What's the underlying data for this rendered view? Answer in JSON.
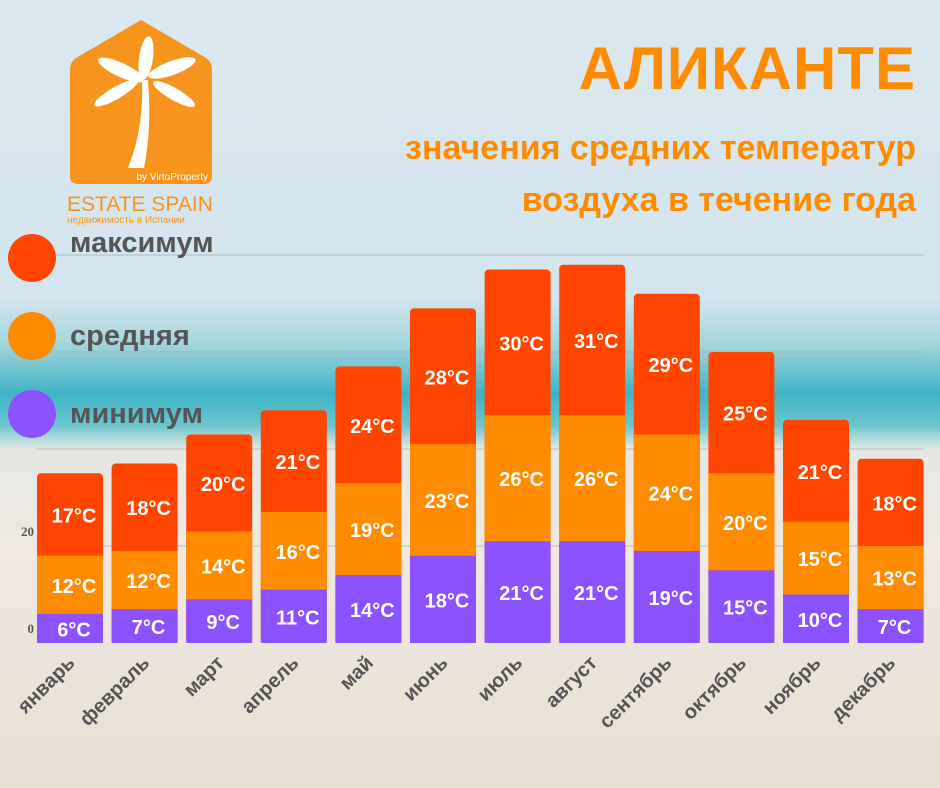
{
  "header": {
    "title": "АЛИКАНТЕ",
    "subtitle_line1": "значения средних температур",
    "subtitle_line2": "воздуха в течение года"
  },
  "logo": {
    "name": "ESTATE SPAIN",
    "tagline": "недвижимость в Испании",
    "byline": "by VirtoProperty"
  },
  "colors": {
    "max": "#ff4500",
    "avg": "#ff8c00",
    "min": "#8c52ff",
    "title": "#ff8c00"
  },
  "chart_data": {
    "type": "bar",
    "stacked": true,
    "title": "значения средних температур воздуха в течение года",
    "categories": [
      "январь",
      "февраль",
      "март",
      "апрель",
      "май",
      "июнь",
      "июль",
      "август",
      "сентябрь",
      "октябрь",
      "ноябрь",
      "декабрь"
    ],
    "unit": "°C",
    "series": [
      {
        "name": "минимум",
        "key": "min",
        "values": [
          6,
          7,
          9,
          11,
          14,
          18,
          21,
          21,
          19,
          15,
          10,
          7
        ]
      },
      {
        "name": "средняя",
        "key": "avg",
        "values": [
          12,
          12,
          14,
          16,
          19,
          23,
          26,
          26,
          24,
          20,
          15,
          13
        ]
      },
      {
        "name": "максимум",
        "key": "max",
        "values": [
          17,
          18,
          20,
          21,
          24,
          28,
          30,
          31,
          29,
          25,
          21,
          18
        ]
      }
    ],
    "legend_order": [
      "максимум",
      "средняя",
      "минимум"
    ],
    "yticks": [
      "0",
      "20"
    ],
    "ylim": [
      0,
      85
    ],
    "grid": true,
    "legend_position": "left"
  }
}
